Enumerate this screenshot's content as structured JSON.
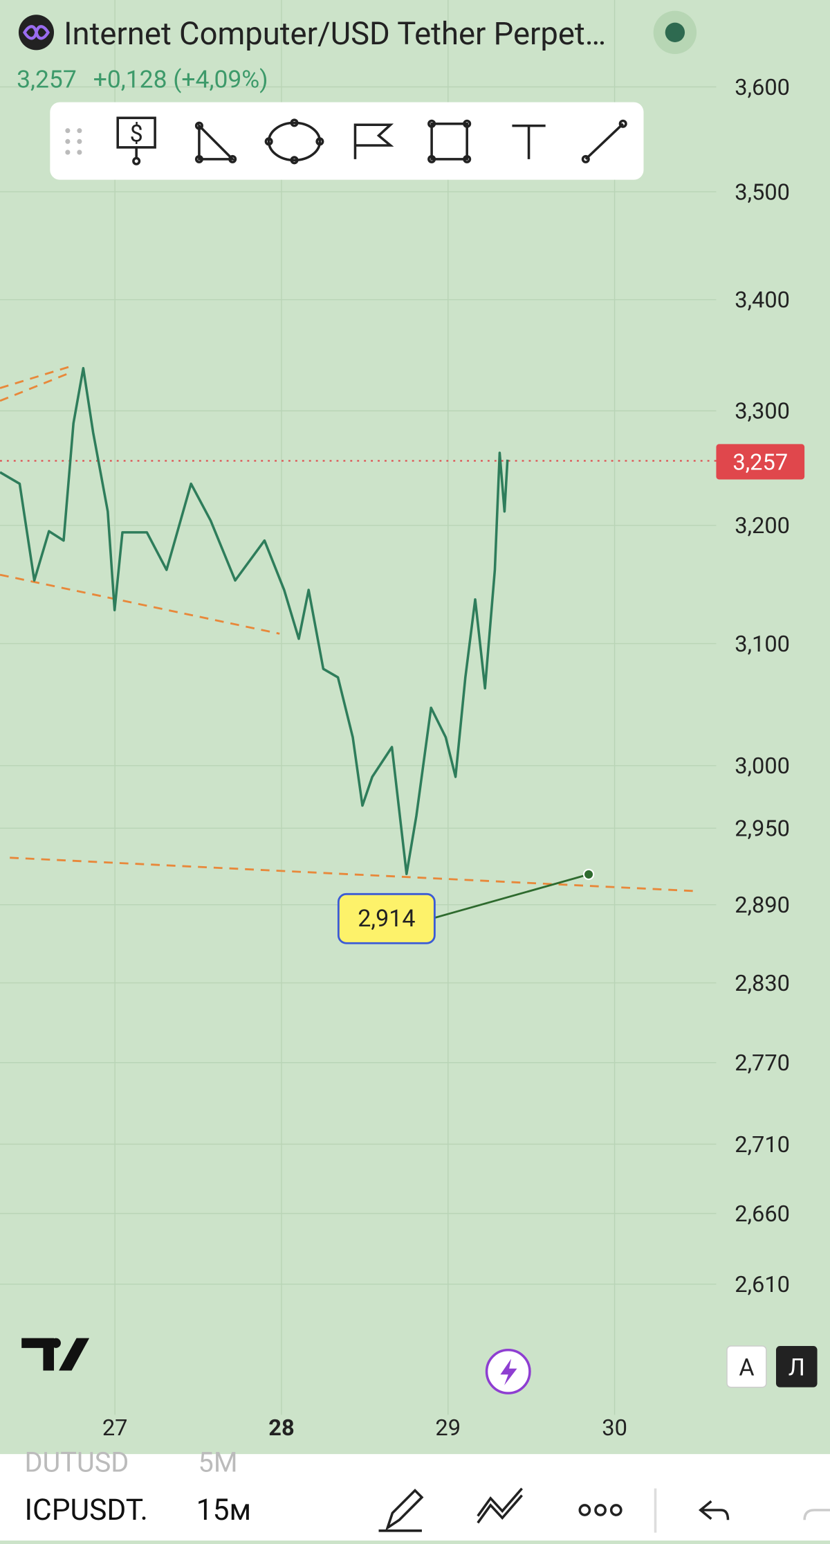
{
  "header": {
    "title": "Internet Computer/USD Tether Perpet…",
    "price": "3,257",
    "change": "+0,128 (+4,09%)"
  },
  "chart_data": {
    "type": "line",
    "log_scale": true,
    "grid": true,
    "color": "#2e7d5b",
    "x": [
      26.31,
      26.428,
      26.516,
      26.604,
      26.692,
      26.751,
      26.81,
      26.869,
      26.957,
      26.998,
      27.045,
      27.192,
      27.31,
      27.457,
      27.575,
      27.722,
      27.898,
      28.016,
      28.104,
      28.163,
      28.251,
      28.339,
      28.428,
      28.486,
      28.545,
      28.663,
      28.751,
      28.81,
      28.898,
      28.986,
      29.045,
      29.104,
      29.163,
      29.222,
      29.281,
      29.31,
      29.339,
      29.357
    ],
    "values": [
      3.246,
      3.236,
      3.153,
      3.195,
      3.187,
      3.289,
      3.338,
      3.281,
      3.212,
      3.128,
      3.194,
      3.194,
      3.162,
      3.236,
      3.204,
      3.153,
      3.187,
      3.145,
      3.104,
      3.145,
      3.079,
      3.072,
      3.023,
      2.968,
      2.991,
      3.015,
      2.914,
      2.96,
      3.047,
      3.023,
      2.991,
      3.072,
      3.137,
      3.063,
      3.162,
      3.263,
      3.212,
      3.257
    ],
    "xlim": [
      26.31,
      30.61
    ],
    "ylim": [
      2.52,
      3.685
    ],
    "xticks": [
      27,
      28,
      29,
      30
    ],
    "yticks": [
      {
        "value": 3.6,
        "label": "3,600"
      },
      {
        "value": 3.5,
        "label": "3,500"
      },
      {
        "value": 3.4,
        "label": "3,400"
      },
      {
        "value": 3.3,
        "label": "3,300"
      },
      {
        "value": 3.2,
        "label": "3,200"
      },
      {
        "value": 3.1,
        "label": "3,100"
      },
      {
        "value": 3.0,
        "label": "3,000"
      },
      {
        "value": 2.95,
        "label": "2,950"
      },
      {
        "value": 2.89,
        "label": "2,890"
      },
      {
        "value": 2.83,
        "label": "2,830"
      },
      {
        "value": 2.77,
        "label": "2,770"
      },
      {
        "value": 2.71,
        "label": "2,710"
      },
      {
        "value": 2.66,
        "label": "2,660"
      },
      {
        "value": 2.61,
        "label": "2,610"
      }
    ],
    "annotations": [
      {
        "value": 3.257,
        "label": "3,257"
      },
      {
        "value": 2.914,
        "label": "2,914"
      }
    ]
  },
  "scale_buttons": [
    "A",
    "Л"
  ],
  "footer": {
    "symbols": [
      "DUTUSD",
      "ICPUSDT."
    ],
    "intervals": [
      "5M",
      "15м"
    ]
  }
}
